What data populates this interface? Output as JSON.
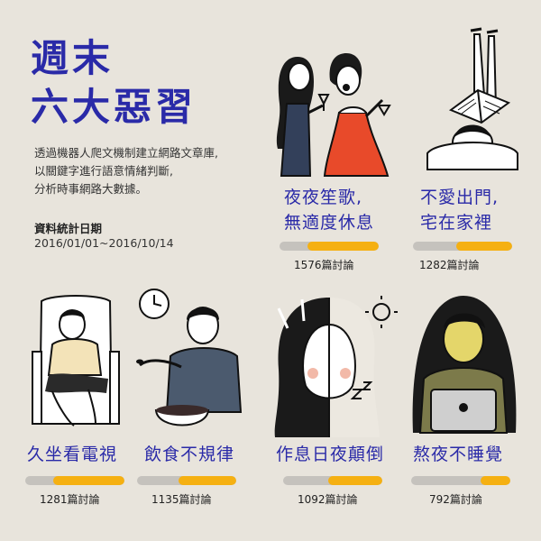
{
  "title": {
    "line1": "週末",
    "line2": "六大惡習"
  },
  "description": {
    "line1": "透過機器人爬文機制建立網路文章庫,",
    "line2": "以關鍵字進行語意情緒判斷,",
    "line3": "分析時事網路大數據。"
  },
  "stats_date": {
    "label": "資料統計日期",
    "range": "2016/01/01~2016/10/14"
  },
  "habits": [
    {
      "line1": "夜夜笙歌,",
      "line2": "無適度休息",
      "count": "1576篇討論",
      "value": 1576,
      "fill": 0.72
    },
    {
      "line1": "不愛出門,",
      "line2": "宅在家裡",
      "count": "1282篇討論",
      "value": 1282,
      "fill": 0.56
    },
    {
      "line1": "久坐看電視",
      "count": "1281篇討論",
      "value": 1281,
      "fill": 0.72
    },
    {
      "line1": "飲食不規律",
      "count": "1135篇討論",
      "value": 1135,
      "fill": 0.58
    },
    {
      "line1": "作息日夜顛倒",
      "count": "1092篇討論",
      "value": 1092,
      "fill": 0.55
    },
    {
      "line1": "熬夜不睡覺",
      "count": "792篇討論",
      "value": 792,
      "fill": 0.3
    }
  ],
  "colors": {
    "accent": "#2a2aa8",
    "bar_fill": "#f5b012",
    "bar_track": "#c5c2bd",
    "background": "#e8e4dc"
  }
}
